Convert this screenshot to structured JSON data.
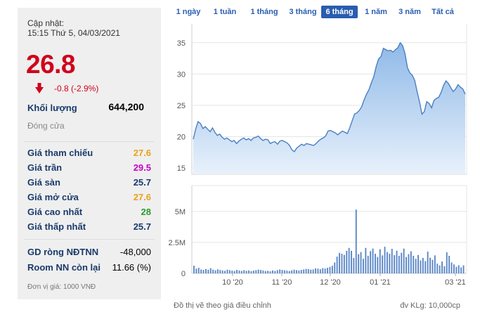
{
  "update": {
    "label": "Cập nhật:",
    "time": "15:15 Thứ 5, 04/03/2021"
  },
  "price": {
    "value": "26.8",
    "change": "-0.8 (-2.9%)",
    "direction_icon": "down-arrow-icon",
    "color": "#d0021b"
  },
  "volume": {
    "label": "Khối lượng",
    "value": "644,200"
  },
  "close_label": "Đóng cửa",
  "stats": [
    {
      "label": "Giá tham chiếu",
      "value": "27.6",
      "color": "#e8a317"
    },
    {
      "label": "Giá trần",
      "value": "29.5",
      "color": "#c800c8"
    },
    {
      "label": "Giá sàn",
      "value": "25.7",
      "color": "#1a3a6b"
    },
    {
      "label": "Giá mở cửa",
      "value": "27.6",
      "color": "#e8a317"
    },
    {
      "label": "Giá cao nhất",
      "value": "28",
      "color": "#2a9d2a"
    },
    {
      "label": "Giá thấp nhất",
      "value": "25.7",
      "color": "#1a3a6b"
    }
  ],
  "foreign": [
    {
      "label": "GD ròng NĐTNN",
      "value": "-48,000"
    },
    {
      "label": "Room NN còn lại",
      "value": "11.66 (%)"
    }
  ],
  "unit_note": "Đơn vị giá: 1000 VNĐ",
  "range_tabs": [
    "1 ngày",
    "1 tuần",
    "1 tháng",
    "3 tháng",
    "6 tháng",
    "1 năm",
    "3 năm",
    "Tất cả"
  ],
  "active_tab": "6 tháng",
  "footer": {
    "left": "Đồ thị vẽ theo giá điều chỉnh",
    "right": "đv KLg: 10,000cp"
  },
  "chart_data": [
    {
      "type": "area",
      "yticks": [
        15,
        20,
        25,
        30,
        35
      ],
      "ylim": [
        14,
        38
      ],
      "xticks": [
        "10 '20",
        "11 '20",
        "12 '20",
        "01 '21",
        "03 '21"
      ],
      "values": [
        19.6,
        21.2,
        22.4,
        22.1,
        21.3,
        21.6,
        21.2,
        20.8,
        21.4,
        20.7,
        20.2,
        20.4,
        19.9,
        19.6,
        19.8,
        19.5,
        19.2,
        19.4,
        18.9,
        19.3,
        19.6,
        19.8,
        19.5,
        19.7,
        19.4,
        19.8,
        19.9,
        20.1,
        19.7,
        19.4,
        19.6,
        19.5,
        18.9,
        19.1,
        19.2,
        18.8,
        19.3,
        19.4,
        19.2,
        19.0,
        18.6,
        17.9,
        17.6,
        18.2,
        18.5,
        18.8,
        18.6,
        18.9,
        18.8,
        18.7,
        18.6,
        18.9,
        19.3,
        19.6,
        19.8,
        20.1,
        20.9,
        21.0,
        20.8,
        20.6,
        20.3,
        20.6,
        20.9,
        20.7,
        20.5,
        21.4,
        22.5,
        23.6,
        23.8,
        24.2,
        24.8,
        25.9,
        26.8,
        27.5,
        28.6,
        29.6,
        31.2,
        32.4,
        32.8,
        34.1,
        33.9,
        33.7,
        33.8,
        33.5,
        33.9,
        34.2,
        35.0,
        34.5,
        33.2,
        31.0,
        30.2,
        29.8,
        29.0,
        27.2,
        25.6,
        23.6,
        24.0,
        25.6,
        25.3,
        24.6,
        25.8,
        26.1,
        26.3,
        27.1,
        28.2,
        28.9,
        28.5,
        27.8,
        27.2,
        27.6,
        28.3,
        27.9,
        27.6,
        26.8
      ]
    },
    {
      "type": "bar",
      "ylabel_ticks": [
        "5M",
        "2.5M",
        "0"
      ],
      "ylim": [
        0,
        5500000
      ],
      "values": [
        620000,
        380000,
        450000,
        310000,
        280000,
        350000,
        290000,
        420000,
        300000,
        250000,
        330000,
        270000,
        240000,
        210000,
        300000,
        260000,
        220000,
        190000,
        280000,
        230000,
        200000,
        260000,
        210000,
        240000,
        180000,
        220000,
        260000,
        300000,
        270000,
        230000,
        190000,
        210000,
        170000,
        230000,
        200000,
        260000,
        310000,
        280000,
        250000,
        220000,
        190000,
        240000,
        300000,
        260000,
        230000,
        280000,
        310000,
        360000,
        340000,
        300000,
        320000,
        410000,
        380000,
        330000,
        420000,
        390000,
        450000,
        520000,
        610000,
        880000,
        1350000,
        1650000,
        1580000,
        1490000,
        1820000,
        2050000,
        1820000,
        1250000,
        5150000,
        1550000,
        1720000,
        1180000,
        2050000,
        1420000,
        1800000,
        2000000,
        1580000,
        1320000,
        1950000,
        1450000,
        2150000,
        1720000,
        1580000,
        1980000,
        1470000,
        1830000,
        1420000,
        1660000,
        2000000,
        1320000,
        1550000,
        1780000,
        1420000,
        1180000,
        1480000,
        1050000,
        1250000,
        980000,
        1750000,
        1260000,
        1090000,
        1450000,
        780000,
        640000,
        950000,
        580000,
        1700000,
        1420000,
        880000,
        720000,
        530000,
        660000,
        480000,
        644200
      ]
    }
  ],
  "colors": {
    "accent": "#2a5db0",
    "area_line": "#4a7fc1",
    "area_fill_top": "#9cc3ec",
    "area_fill_bottom": "#e6f0fb",
    "volume_bar": "#5b87c7",
    "grid": "#e5e5e5"
  }
}
